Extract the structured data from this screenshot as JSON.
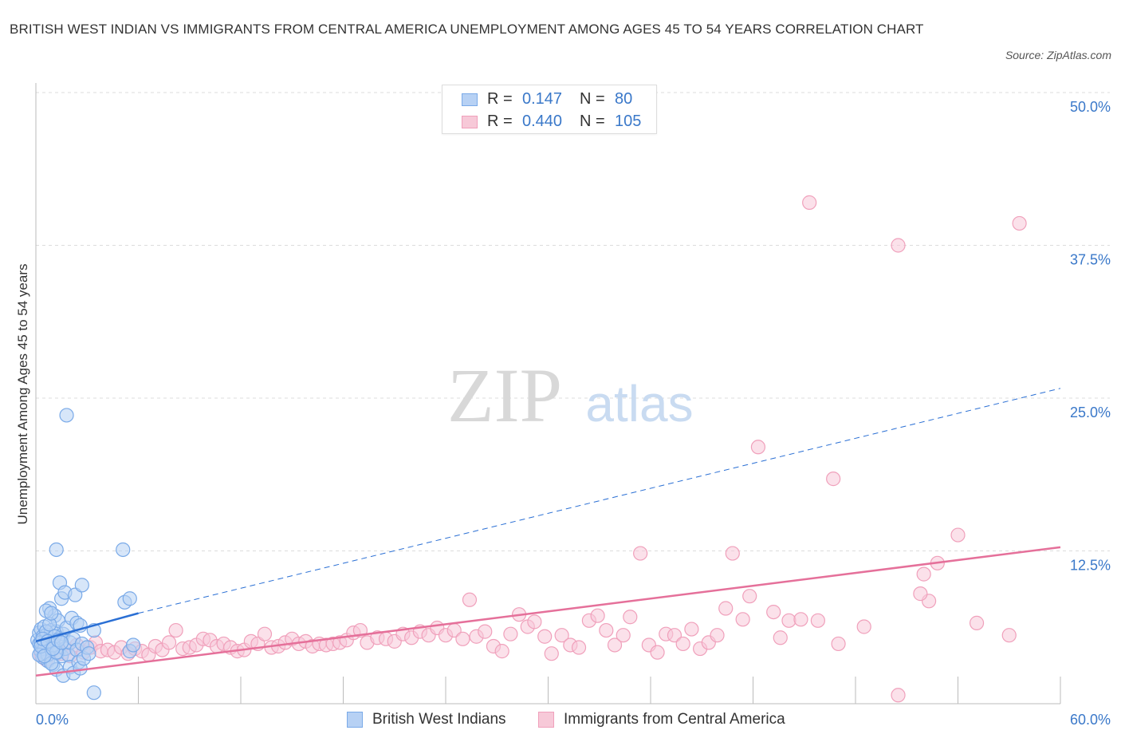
{
  "title": "BRITISH WEST INDIAN VS IMMIGRANTS FROM CENTRAL AMERICA UNEMPLOYMENT AMONG AGES 45 TO 54 YEARS CORRELATION CHART",
  "source": "Source: ZipAtlas.com",
  "watermark": {
    "zip": "ZIP",
    "atlas": "atlas"
  },
  "colors": {
    "blue": "#7aaae8",
    "blue_fill": "#b7d1f4",
    "blue_line": "#2a6fd4",
    "pink": "#f0a0bb",
    "pink_fill": "#f7c9d8",
    "pink_line": "#e5709a",
    "tick_text": "#3a78c9",
    "grid": "#dcdcdc"
  },
  "legend": {
    "series1": {
      "r_label": "R =",
      "r_value": "0.147",
      "n_label": "N =",
      "n_value": "80"
    },
    "series2": {
      "r_label": "R =",
      "r_value": "0.440",
      "n_label": "N =",
      "n_value": "105"
    }
  },
  "chart_data": {
    "type": "scatter",
    "title": "BRITISH WEST INDIAN VS IMMIGRANTS FROM CENTRAL AMERICA UNEMPLOYMENT AMONG AGES 45 TO 54 YEARS CORRELATION CHART",
    "xlabel": "",
    "ylabel": "Unemployment Among Ages 45 to 54 years",
    "xlim": [
      0,
      60
    ],
    "ylim": [
      0,
      50
    ],
    "x_tick_labels": {
      "min": "0.0%",
      "max": "60.0%"
    },
    "y_ticks": [
      {
        "value": 12.5,
        "label": "12.5%"
      },
      {
        "value": 25.0,
        "label": "25.0%"
      },
      {
        "value": 37.5,
        "label": "37.5%"
      },
      {
        "value": 50.0,
        "label": "50.0%"
      }
    ],
    "series": [
      {
        "name": "British West Indians",
        "color": "blue",
        "trend": {
          "solid": [
            [
              0,
              5.1
            ],
            [
              6.0,
              7.4
            ]
          ],
          "dashed": [
            [
              6.0,
              7.4
            ],
            [
              60,
              25.8
            ]
          ]
        },
        "points": [
          [
            0.1,
            5.2
          ],
          [
            0.2,
            4.9
          ],
          [
            0.2,
            5.8
          ],
          [
            0.3,
            4.3
          ],
          [
            0.3,
            6.1
          ],
          [
            0.4,
            5.5
          ],
          [
            0.4,
            4.6
          ],
          [
            0.5,
            5.0
          ],
          [
            0.5,
            6.3
          ],
          [
            0.6,
            4.1
          ],
          [
            0.6,
            5.6
          ],
          [
            0.7,
            4.8
          ],
          [
            0.7,
            3.5
          ],
          [
            0.8,
            5.3
          ],
          [
            0.8,
            7.8
          ],
          [
            0.9,
            4.4
          ],
          [
            0.9,
            6.0
          ],
          [
            1.0,
            5.1
          ],
          [
            1.0,
            3.2
          ],
          [
            1.1,
            4.7
          ],
          [
            1.1,
            7.2
          ],
          [
            1.2,
            5.9
          ],
          [
            1.2,
            2.8
          ],
          [
            1.3,
            4.2
          ],
          [
            1.3,
            6.8
          ],
          [
            1.4,
            5.4
          ],
          [
            1.4,
            9.9
          ],
          [
            1.5,
            3.9
          ],
          [
            1.5,
            8.6
          ],
          [
            1.6,
            5.7
          ],
          [
            1.6,
            2.3
          ],
          [
            1.7,
            4.5
          ],
          [
            1.7,
            9.1
          ],
          [
            1.8,
            6.2
          ],
          [
            1.8,
            23.6
          ],
          [
            1.9,
            4.0
          ],
          [
            2.0,
            5.0
          ],
          [
            2.0,
            3.0
          ],
          [
            2.1,
            7.0
          ],
          [
            2.2,
            5.3
          ],
          [
            2.2,
            2.5
          ],
          [
            2.3,
            8.9
          ],
          [
            2.4,
            4.4
          ],
          [
            2.4,
            6.6
          ],
          [
            2.5,
            3.4
          ],
          [
            2.6,
            6.4
          ],
          [
            2.6,
            2.9
          ],
          [
            2.7,
            4.9
          ],
          [
            2.7,
            9.7
          ],
          [
            2.8,
            3.7
          ],
          [
            3.0,
            4.6
          ],
          [
            3.1,
            4.1
          ],
          [
            3.4,
            6.0
          ],
          [
            3.4,
            0.9
          ],
          [
            5.1,
            12.6
          ],
          [
            5.2,
            8.3
          ],
          [
            5.5,
            8.6
          ],
          [
            5.5,
            4.3
          ],
          [
            5.7,
            4.8
          ],
          [
            1.2,
            12.6
          ],
          [
            0.3,
            5.0
          ],
          [
            0.4,
            3.8
          ],
          [
            0.5,
            4.5
          ],
          [
            0.6,
            5.9
          ],
          [
            0.7,
            4.0
          ],
          [
            0.8,
            6.5
          ],
          [
            0.9,
            3.3
          ],
          [
            1.0,
            4.8
          ],
          [
            1.1,
            5.5
          ],
          [
            1.2,
            4.2
          ],
          [
            0.2,
            4.0
          ],
          [
            0.3,
            4.7
          ],
          [
            0.4,
            5.3
          ],
          [
            0.5,
            3.9
          ],
          [
            0.6,
            7.6
          ],
          [
            0.7,
            5.1
          ],
          [
            0.9,
            7.4
          ],
          [
            1.0,
            4.5
          ],
          [
            1.3,
            5.2
          ],
          [
            1.5,
            5.0
          ]
        ]
      },
      {
        "name": "Immigrants from Central America",
        "color": "pink",
        "trend": {
          "solid": [
            [
              0,
              2.3
            ],
            [
              60,
              12.8
            ]
          ]
        },
        "points": [
          [
            0.3,
            4.0
          ],
          [
            0.6,
            3.6
          ],
          [
            0.9,
            4.3
          ],
          [
            1.2,
            4.6
          ],
          [
            1.5,
            4.1
          ],
          [
            1.8,
            4.5
          ],
          [
            2.0,
            3.9
          ],
          [
            2.4,
            4.8
          ],
          [
            2.8,
            4.2
          ],
          [
            3.2,
            4.6
          ],
          [
            3.5,
            5.0
          ],
          [
            3.8,
            4.3
          ],
          [
            4.2,
            4.4
          ],
          [
            4.6,
            4.2
          ],
          [
            5.0,
            4.6
          ],
          [
            5.4,
            4.1
          ],
          [
            5.8,
            4.5
          ],
          [
            6.2,
            4.3
          ],
          [
            6.6,
            4.0
          ],
          [
            7.0,
            4.7
          ],
          [
            7.4,
            4.4
          ],
          [
            7.8,
            5.0
          ],
          [
            8.2,
            6.0
          ],
          [
            8.6,
            4.5
          ],
          [
            9.0,
            4.6
          ],
          [
            9.4,
            4.8
          ],
          [
            9.8,
            5.3
          ],
          [
            10.2,
            5.2
          ],
          [
            10.6,
            4.7
          ],
          [
            11.0,
            4.9
          ],
          [
            11.4,
            4.6
          ],
          [
            11.8,
            4.3
          ],
          [
            12.2,
            4.4
          ],
          [
            12.6,
            5.1
          ],
          [
            13.0,
            4.9
          ],
          [
            13.4,
            5.7
          ],
          [
            13.8,
            4.6
          ],
          [
            14.2,
            4.7
          ],
          [
            14.6,
            5.0
          ],
          [
            15.0,
            5.3
          ],
          [
            15.4,
            4.9
          ],
          [
            15.8,
            5.1
          ],
          [
            16.2,
            4.7
          ],
          [
            16.6,
            4.9
          ],
          [
            17.0,
            4.8
          ],
          [
            17.4,
            4.9
          ],
          [
            17.8,
            5.0
          ],
          [
            18.2,
            5.2
          ],
          [
            18.6,
            5.8
          ],
          [
            19.0,
            6.0
          ],
          [
            19.4,
            5.0
          ],
          [
            20.0,
            5.4
          ],
          [
            20.5,
            5.3
          ],
          [
            21.0,
            5.1
          ],
          [
            21.5,
            5.7
          ],
          [
            22.0,
            5.4
          ],
          [
            22.5,
            5.9
          ],
          [
            23.0,
            5.6
          ],
          [
            23.5,
            6.2
          ],
          [
            24.0,
            5.6
          ],
          [
            24.5,
            6.0
          ],
          [
            25.0,
            5.3
          ],
          [
            25.4,
            8.5
          ],
          [
            25.8,
            5.5
          ],
          [
            26.3,
            5.9
          ],
          [
            26.8,
            4.7
          ],
          [
            27.3,
            4.3
          ],
          [
            27.8,
            5.7
          ],
          [
            28.3,
            7.3
          ],
          [
            28.8,
            6.3
          ],
          [
            29.2,
            6.7
          ],
          [
            29.8,
            5.5
          ],
          [
            30.2,
            4.1
          ],
          [
            30.8,
            5.6
          ],
          [
            31.3,
            4.8
          ],
          [
            31.8,
            4.6
          ],
          [
            32.4,
            6.8
          ],
          [
            32.9,
            7.2
          ],
          [
            33.4,
            6.0
          ],
          [
            33.9,
            4.8
          ],
          [
            34.4,
            5.6
          ],
          [
            34.8,
            7.1
          ],
          [
            35.4,
            12.3
          ],
          [
            35.9,
            4.8
          ],
          [
            36.4,
            4.2
          ],
          [
            36.9,
            5.7
          ],
          [
            37.4,
            5.6
          ],
          [
            37.9,
            4.9
          ],
          [
            38.4,
            6.1
          ],
          [
            38.9,
            4.5
          ],
          [
            39.4,
            5.0
          ],
          [
            39.9,
            5.6
          ],
          [
            40.4,
            7.8
          ],
          [
            40.8,
            12.3
          ],
          [
            41.4,
            6.9
          ],
          [
            41.8,
            8.8
          ],
          [
            42.3,
            21.0
          ],
          [
            43.2,
            7.5
          ],
          [
            43.6,
            5.4
          ],
          [
            44.1,
            6.8
          ],
          [
            44.8,
            6.9
          ],
          [
            45.3,
            41.0
          ],
          [
            45.8,
            6.8
          ],
          [
            46.7,
            18.4
          ],
          [
            47.0,
            4.9
          ]
        ],
        "extra_points": [
          [
            48.5,
            6.3
          ],
          [
            50.5,
            37.5
          ],
          [
            50.5,
            0.7
          ],
          [
            52.3,
            8.4
          ],
          [
            51.8,
            9.0
          ],
          [
            52.0,
            10.6
          ],
          [
            52.8,
            11.5
          ],
          [
            54.0,
            13.8
          ],
          [
            55.1,
            6.6
          ],
          [
            57.0,
            5.6
          ],
          [
            57.6,
            39.3
          ]
        ]
      }
    ],
    "legend_position": "top-center"
  },
  "bottom_legend": {
    "series1": "British West Indians",
    "series2": "Immigrants from Central America"
  }
}
